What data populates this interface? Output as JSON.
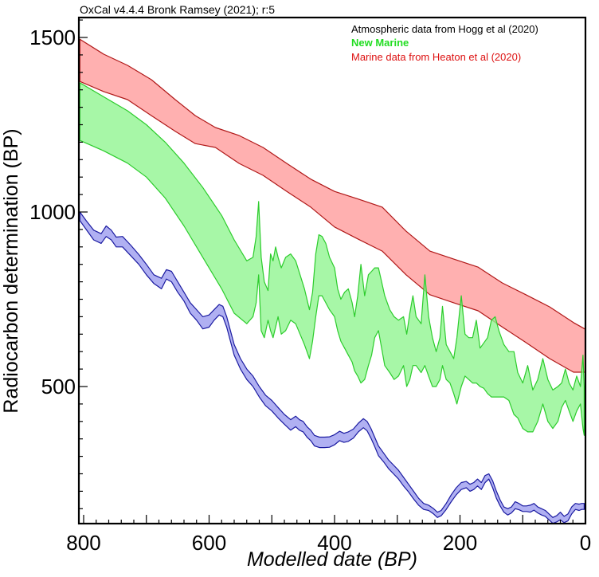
{
  "chart_data": {
    "type": "area",
    "credit": "OxCal v4.4.4 Bronk Ramsey (2021); r:5",
    "title": "",
    "xlabel": "Modelled date (BP)",
    "ylabel": "Radiocarbon determination (BP)",
    "xlim": [
      806,
      0
    ],
    "ylim": [
      110,
      1545
    ],
    "x_ticks": [
      800,
      600,
      400,
      200,
      0
    ],
    "x_tick_labels": [
      "800",
      "600",
      "400",
      "200",
      "0"
    ],
    "y_ticks": [
      1500,
      1000,
      500
    ],
    "y_tick_labels": [
      "1500",
      "1000",
      "500"
    ],
    "grid": false,
    "legend_position": "top-right",
    "legend": [
      {
        "label": "Atmospheric data from Hogg et al (2020)",
        "color": "#000000"
      },
      {
        "label": "New Marine",
        "color": "#22dd22"
      },
      {
        "label": "Marine data from Heaton et al (2020)",
        "color": "#dd1111"
      }
    ],
    "series": [
      {
        "name": "Marine data from Heaton et al (2020)",
        "fill": "#ff9a9a",
        "stroke": "#b01818",
        "x": [
          806,
          768,
          730,
          692,
          654,
          622,
          590,
          552,
          514,
          476,
          438,
          400,
          362,
          324,
          286,
          248,
          210,
          171,
          133,
          95,
          57,
          19,
          0
        ],
        "upper": [
          1495,
          1452,
          1420,
          1379,
          1322,
          1276,
          1242,
          1219,
          1185,
          1139,
          1094,
          1059,
          1037,
          1014,
          945,
          888,
          865,
          842,
          797,
          763,
          728,
          683,
          664
        ],
        "lower": [
          1374,
          1345,
          1322,
          1276,
          1231,
          1196,
          1185,
          1139,
          1105,
          1059,
          1014,
          957,
          922,
          888,
          820,
          763,
          740,
          717,
          671,
          626,
          580,
          541,
          541
        ]
      },
      {
        "name": "New Marine",
        "fill": "#8ef58e",
        "stroke": "#2ccc2c",
        "x": [
          806,
          768,
          730,
          700,
          670,
          640,
          610,
          580,
          560,
          540,
          530,
          525,
          521,
          517,
          512,
          506,
          502,
          498,
          494,
          490,
          485,
          478,
          470,
          462,
          455,
          448,
          440,
          435,
          430,
          425,
          420,
          414,
          408,
          400,
          395,
          390,
          384,
          378,
          372,
          368,
          363,
          358,
          352,
          346,
          341,
          336,
          330,
          325,
          320,
          312,
          305,
          298,
          290,
          285,
          280,
          275,
          270,
          262,
          256,
          250,
          244,
          238,
          232,
          228,
          222,
          216,
          210,
          205,
          198,
          192,
          186,
          180,
          174,
          168,
          162,
          156,
          150,
          144,
          138,
          130,
          122,
          114,
          108,
          100,
          92,
          84,
          76,
          68,
          60,
          52,
          44,
          38,
          32,
          26,
          20,
          14,
          8,
          4,
          2
        ],
        "upper": [
          1370,
          1330,
          1290,
          1250,
          1200,
          1140,
          1070,
          990,
          920,
          860,
          870,
          930,
          1030,
          870,
          800,
          775,
          880,
          860,
          900,
          870,
          840,
          870,
          880,
          860,
          820,
          780,
          720,
          770,
          880,
          935,
          930,
          910,
          870,
          840,
          780,
          750,
          770,
          780,
          740,
          700,
          760,
          850,
          760,
          820,
          830,
          840,
          840,
          800,
          760,
          720,
          700,
          690,
          700,
          650,
          710,
          760,
          700,
          680,
          820,
          700,
          640,
          600,
          640,
          730,
          620,
          600,
          580,
          640,
          760,
          650,
          640,
          640,
          690,
          610,
          625,
          640,
          690,
          700,
          660,
          620,
          600,
          600,
          540,
          510,
          560,
          490,
          520,
          580,
          520,
          490,
          500,
          510,
          550,
          510,
          490,
          530,
          500,
          590,
          500
        ],
        "lower": [
          1205,
          1175,
          1140,
          1100,
          1040,
          960,
          870,
          780,
          710,
          680,
          700,
          740,
          820,
          660,
          640,
          690,
          660,
          640,
          670,
          700,
          650,
          660,
          690,
          680,
          650,
          620,
          580,
          630,
          700,
          760,
          760,
          740,
          720,
          700,
          660,
          630,
          610,
          590,
          570,
          545,
          530,
          510,
          520,
          560,
          590,
          640,
          660,
          610,
          560,
          540,
          520,
          530,
          560,
          500,
          520,
          560,
          560,
          540,
          560,
          530,
          500,
          500,
          520,
          560,
          520,
          510,
          480,
          450,
          500,
          530,
          520,
          510,
          510,
          500,
          495,
          480,
          470,
          470,
          470,
          470,
          460,
          420,
          410,
          380,
          370,
          370,
          400,
          450,
          400,
          380,
          400,
          440,
          460,
          430,
          400,
          430,
          450,
          380,
          360
        ]
      },
      {
        "name": "Atmospheric data from Hogg et al (2020)",
        "fill": "#9a9aee",
        "stroke": "#1a1aa0",
        "x": [
          806,
          796,
          784,
          772,
          764,
          756,
          748,
          738,
          725,
          712,
          700,
          688,
          676,
          668,
          660,
          650,
          640,
          630,
          620,
          610,
          600,
          592,
          584,
          578,
          572,
          566,
          560,
          550,
          540,
          530,
          520,
          510,
          500,
          490,
          480,
          470,
          462,
          456,
          450,
          444,
          438,
          432,
          424,
          416,
          408,
          400,
          392,
          385,
          378,
          370,
          362,
          354,
          348,
          342,
          336,
          330,
          322,
          314,
          306,
          298,
          290,
          282,
          274,
          266,
          258,
          250,
          242,
          236,
          230,
          222,
          214,
          206,
          198,
          190,
          184,
          178,
          172,
          166,
          160,
          154,
          148,
          142,
          136,
          130,
          124,
          118,
          112,
          106,
          100,
          94,
          88,
          82,
          76,
          70,
          64,
          58,
          52,
          46,
          40,
          34,
          28,
          22,
          16,
          10,
          6,
          2
        ],
        "upper": [
          1000,
          975,
          948,
          938,
          960,
          948,
          928,
          930,
          905,
          878,
          850,
          820,
          810,
          835,
          830,
          800,
          770,
          740,
          720,
          700,
          705,
          720,
          735,
          730,
          700,
          660,
          620,
          580,
          550,
          530,
          500,
          475,
          460,
          440,
          420,
          405,
          415,
          405,
          400,
          385,
          375,
          360,
          355,
          355,
          356,
          362,
          372,
          366,
          370,
          378,
          395,
          408,
          400,
          380,
          355,
          330,
          310,
          290,
          275,
          260,
          240,
          220,
          200,
          180,
          165,
          160,
          150,
          140,
          145,
          165,
          190,
          210,
          225,
          228,
          220,
          225,
          235,
          225,
          245,
          250,
          230,
          200,
          175,
          155,
          150,
          155,
          170,
          165,
          158,
          158,
          160,
          165,
          155,
          150,
          145,
          135,
          125,
          130,
          140,
          128,
          135,
          155,
          165,
          163,
          165,
          165
        ],
        "lower": [
          975,
          950,
          920,
          910,
          930,
          920,
          900,
          900,
          875,
          850,
          820,
          795,
          780,
          808,
          800,
          770,
          745,
          710,
          690,
          665,
          670,
          690,
          705,
          700,
          670,
          630,
          590,
          550,
          520,
          500,
          470,
          445,
          430,
          410,
          392,
          375,
          385,
          375,
          370,
          355,
          345,
          330,
          325,
          325,
          326,
          333,
          345,
          340,
          343,
          352,
          370,
          382,
          373,
          352,
          328,
          302,
          285,
          265,
          250,
          235,
          215,
          198,
          178,
          160,
          148,
          145,
          135,
          125,
          130,
          148,
          170,
          190,
          205,
          210,
          200,
          205,
          215,
          205,
          225,
          235,
          210,
          180,
          158,
          140,
          132,
          138,
          150,
          147,
          142,
          142,
          140,
          146,
          138,
          132,
          128,
          118,
          108,
          112,
          118,
          110,
          115,
          135,
          148,
          145,
          148,
          148
        ]
      }
    ]
  }
}
